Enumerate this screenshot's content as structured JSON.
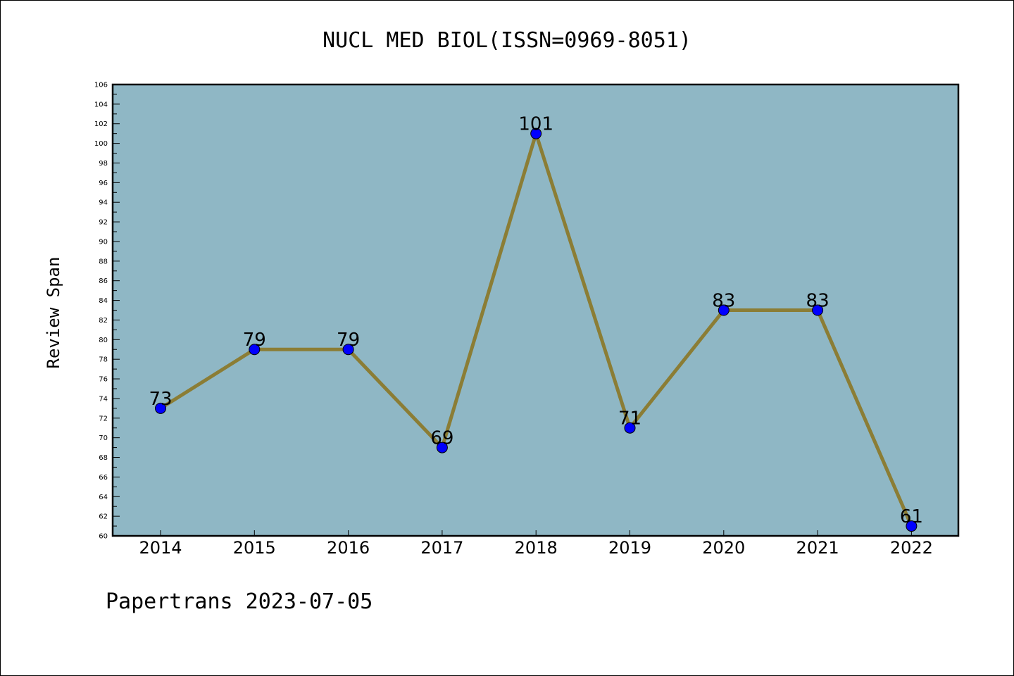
{
  "chart_data": {
    "type": "line",
    "title": "NUCL MED BIOL(ISSN=0969-8051)",
    "ylabel": "Review Span",
    "xlabel": "",
    "categories": [
      "2014",
      "2015",
      "2016",
      "2017",
      "2018",
      "2019",
      "2020",
      "2021",
      "2022"
    ],
    "series": [
      {
        "values": [
          73,
          79,
          79,
          69,
          101,
          71,
          83,
          83,
          61
        ]
      }
    ],
    "ylim": [
      60,
      106
    ],
    "yticks": [
      60,
      62,
      64,
      66,
      68,
      70,
      72,
      74,
      76,
      78,
      80,
      82,
      84,
      86,
      88,
      90,
      92,
      94,
      96,
      98,
      100,
      102,
      104,
      106
    ],
    "data_labels": true,
    "grid": false,
    "legend": "none",
    "colors": {
      "plot_background": "#8fb7c5",
      "line": "#8b7d35",
      "marker": "#0000ff",
      "axes": "#000000"
    }
  },
  "footer": {
    "text": "Papertrans 2023-07-05"
  }
}
